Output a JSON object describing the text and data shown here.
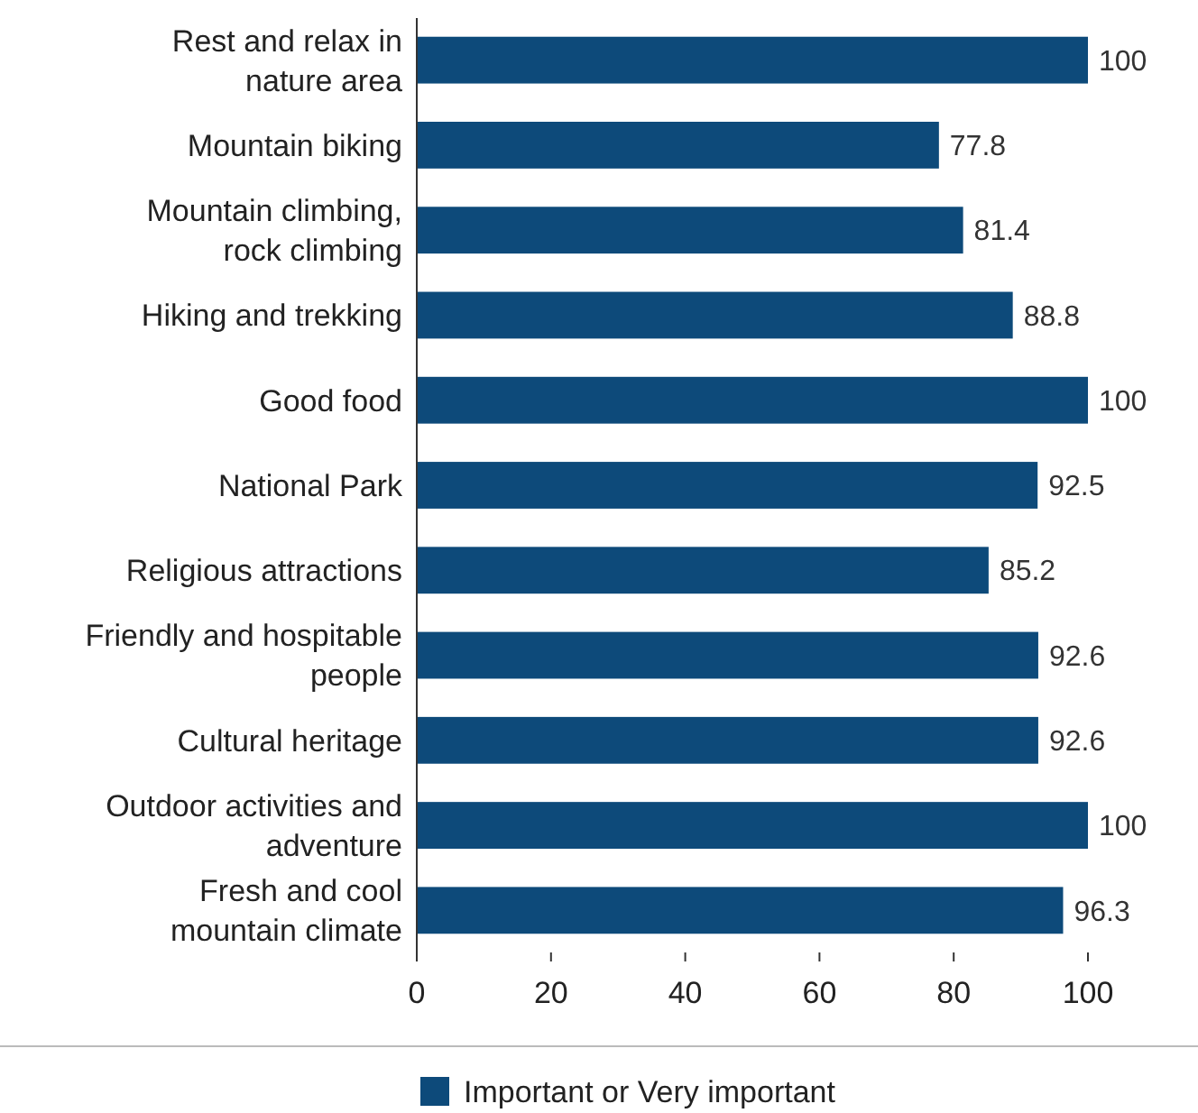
{
  "chart_data": {
    "type": "bar",
    "orientation": "horizontal",
    "categories": [
      "Rest and relax in\nnature area",
      "Mountain biking",
      "Mountain climbing,\nrock climbing",
      "Hiking and trekking",
      "Good food",
      "National Park",
      "Religious attractions",
      "Friendly and hospitable\npeople",
      "Cultural heritage",
      "Outdoor activities and\nadventure",
      "Fresh and cool\nmountain climate"
    ],
    "series": [
      {
        "name": "Important or Very important",
        "color": "#0d4a7a",
        "values": [
          100,
          77.8,
          81.4,
          88.8,
          100,
          92.5,
          85.2,
          92.6,
          92.6,
          100,
          96.3
        ]
      }
    ],
    "xlim": [
      0,
      100
    ],
    "xticks": [
      0,
      20,
      40,
      60,
      80,
      100
    ],
    "data_labels": true,
    "grid": false,
    "legend": "bottom"
  }
}
